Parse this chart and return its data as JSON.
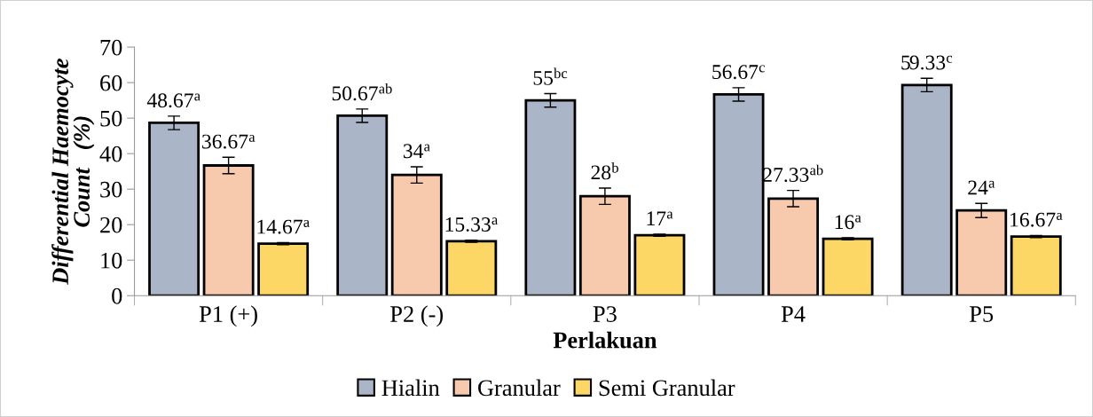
{
  "chart_data": {
    "type": "bar",
    "xlabel": "Perlakuan",
    "ylabel": "Differential Haemocyte\nCount   (%)",
    "categories": [
      "P1 (+)",
      "P2 (-)",
      "P3",
      "P4",
      "P5"
    ],
    "series": [
      {
        "name": "Hialin",
        "color": "#abb5c8",
        "values": [
          48.67,
          50.67,
          55,
          56.67,
          59.33
        ],
        "errors": [
          1.9,
          1.9,
          1.9,
          1.9,
          1.9
        ],
        "value_labels": [
          "48.67$^{a}$",
          "50.67$^{ab}$",
          "55$^{bc}$",
          "56.67$^{c}$",
          "59.33$^{c}$"
        ]
      },
      {
        "name": "Granular",
        "color": "#f7c9ad",
        "values": [
          36.67,
          34,
          28,
          27.33,
          24
        ],
        "errors": [
          2.3,
          2.3,
          2.3,
          2.3,
          2.0
        ],
        "value_labels": [
          "36.67$^{a}$",
          "34$^{a}$",
          "28$^{b}$",
          "27.33$^{ab}$",
          "24$^{a}$"
        ]
      },
      {
        "name": "Semi Granular",
        "color": "#fdd766",
        "values": [
          14.67,
          15.33,
          17,
          16,
          16.67
        ],
        "errors": [
          0.3,
          0.3,
          0.3,
          0.3,
          0.3
        ],
        "value_labels": [
          "14.67$^{a}$",
          "15.33$^{a}$",
          "17$^{a}$",
          "16$^{a}$",
          "16.67$^{a}$"
        ]
      }
    ],
    "ylim": [
      0,
      70
    ],
    "yticks": [
      0,
      10,
      20,
      30,
      40,
      50,
      60,
      70
    ],
    "grid": false,
    "legend": "bottom"
  }
}
